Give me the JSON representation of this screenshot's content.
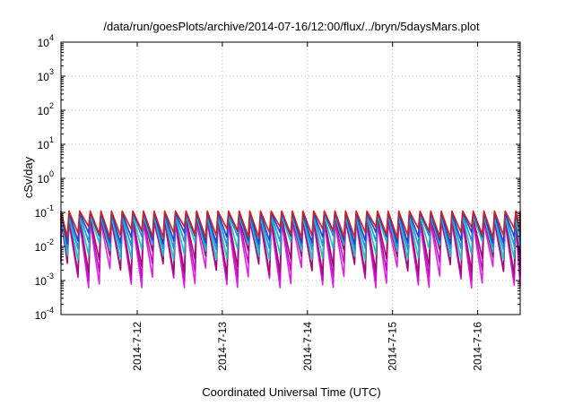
{
  "chart_data": {
    "type": "line",
    "title": "/data/run/goesPlots/archive/2014-07-16/12:00/flux/../bryn/5daysMars.plot",
    "xlabel": "Coordinated Universal Time (UTC)",
    "ylabel": "cSv/day",
    "x_ticks": [
      "2014-7-12",
      "2014-7-13",
      "2014-7-14",
      "2014-7-15",
      "2014-7-16"
    ],
    "xlim": [
      "2014-07-11T02:30",
      "2014-07-16T12:00"
    ],
    "y_scale": "log",
    "ylim": [
      0.0001,
      10000
    ],
    "y_ticks": [
      {
        "base": "10",
        "exp": "-4"
      },
      {
        "base": "10",
        "exp": "-3"
      },
      {
        "base": "10",
        "exp": "-2"
      },
      {
        "base": "10",
        "exp": "-1"
      },
      {
        "base": "10",
        "exp": "0"
      },
      {
        "base": "10",
        "exp": "1"
      },
      {
        "base": "10",
        "exp": "2"
      },
      {
        "base": "10",
        "exp": "3"
      },
      {
        "base": "10",
        "exp": "4"
      }
    ],
    "grid": true,
    "legend": "none",
    "oscillation_period_hours": 3,
    "series": [
      {
        "color": "#e020e0",
        "peak": 0.05,
        "trough": 0.0006
      },
      {
        "color": "#c010c0",
        "peak": 0.06,
        "trough": 0.001
      },
      {
        "color": "#a01070",
        "peak": 0.07,
        "trough": 0.0015
      },
      {
        "color": "#20c0c0",
        "peak": 0.08,
        "trough": 0.004
      },
      {
        "color": "#2090e0",
        "peak": 0.09,
        "trough": 0.008
      },
      {
        "color": "#2040d0",
        "peak": 0.1,
        "trough": 0.012
      },
      {
        "color": "#d02020",
        "peak": 0.11,
        "trough": 0.018
      }
    ]
  }
}
